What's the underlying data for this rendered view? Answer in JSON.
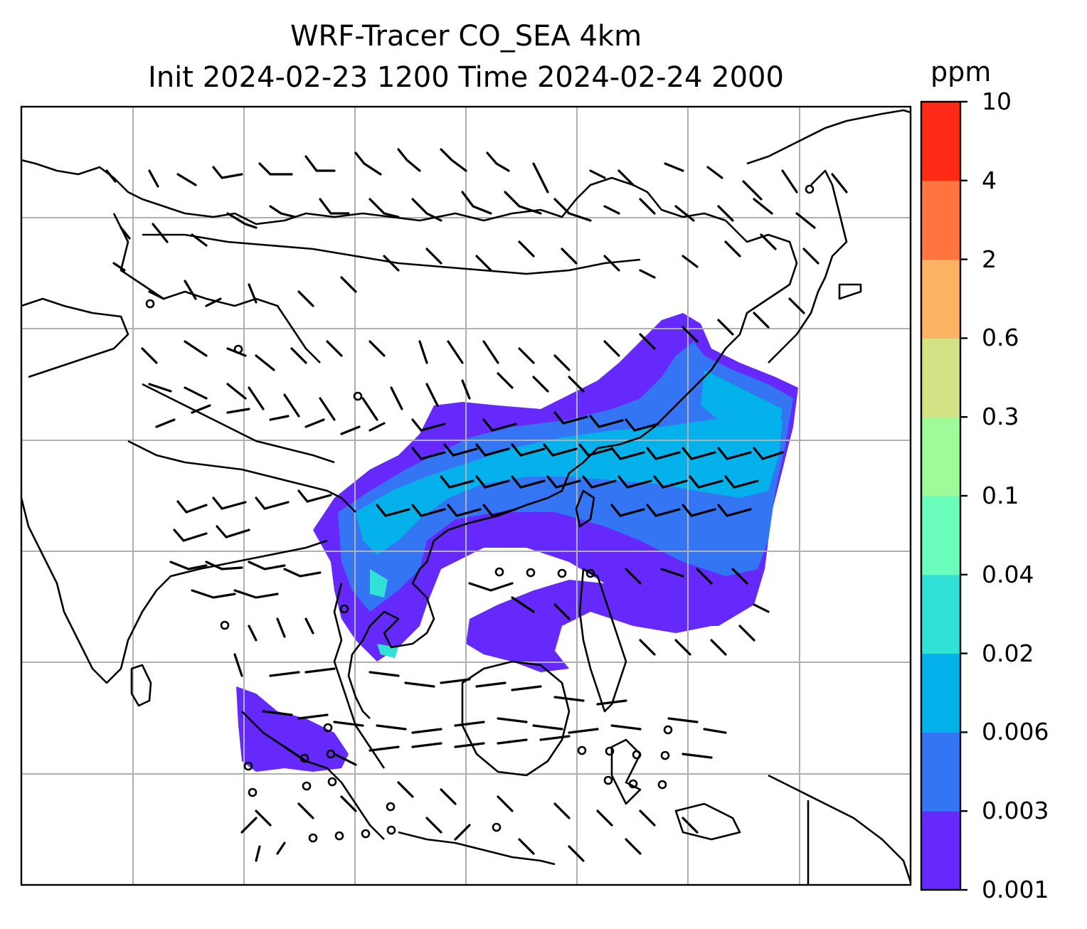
{
  "title": {
    "line1": "WRF-Tracer CO_SEA 4km",
    "line2": "Init 2024-02-23 1200 Time 2024-02-24 2000"
  },
  "colorbar": {
    "unit": "ppm",
    "levels": [
      "0.001",
      "0.003",
      "0.006",
      "0.02",
      "0.04",
      "0.1",
      "0.3",
      "0.6",
      "2",
      "4",
      "10"
    ],
    "colors": [
      "#6529fb",
      "#3375f3",
      "#04b1ea",
      "#31e0d6",
      "#6bfdbb",
      "#9ffb9a",
      "#d2e284",
      "#feb264",
      "#ff743f",
      "#ff2a16"
    ]
  },
  "map": {
    "frame_color": "#000000",
    "gridline_color": "#b0b0b0",
    "coastline_color": "#000000",
    "wind_barb_color": "#000000",
    "features": [
      "coastlines",
      "country-borders",
      "gridlines",
      "wind-barbs",
      "co-tracer-shading"
    ]
  }
}
